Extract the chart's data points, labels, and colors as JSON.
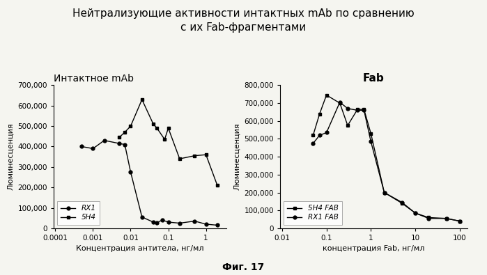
{
  "title_line1": "Нейтрализующие активности интактных mAb по сравнению",
  "title_line2": "с их Fab-фрагментами",
  "fig_label": "Фиг. 17",
  "left_subplot_title": "Интактное mAb",
  "right_subplot_title": "Fab",
  "left_xlabel": "Концентрация антитела, нг/мл",
  "right_xlabel": "концентрация Fab, нг/мл",
  "ylabel": "Люминесценция",
  "rx1_x": [
    0.0005,
    0.001,
    0.002,
    0.005,
    0.007,
    0.01,
    0.02,
    0.04,
    0.05,
    0.07,
    0.1,
    0.2,
    0.5,
    1.0,
    2.0
  ],
  "rx1_y": [
    400000,
    390000,
    430000,
    415000,
    410000,
    275000,
    55000,
    30000,
    28000,
    40000,
    30000,
    25000,
    35000,
    20000,
    15000
  ],
  "5h4_x": [
    0.005,
    0.007,
    0.01,
    0.02,
    0.04,
    0.05,
    0.08,
    0.1,
    0.2,
    0.5,
    1.0,
    2.0
  ],
  "5h4_y": [
    445000,
    470000,
    500000,
    630000,
    510000,
    490000,
    435000,
    490000,
    340000,
    355000,
    360000,
    210000
  ],
  "5h4fab_x": [
    0.05,
    0.07,
    0.1,
    0.2,
    0.3,
    0.5,
    0.7,
    1.0,
    2.0,
    5.0,
    10.0,
    20.0,
    50.0,
    100.0
  ],
  "5h4fab_y": [
    520000,
    640000,
    745000,
    700000,
    575000,
    665000,
    665000,
    530000,
    200000,
    140000,
    85000,
    60000,
    55000,
    40000
  ],
  "rx1fab_x": [
    0.05,
    0.07,
    0.1,
    0.2,
    0.3,
    0.5,
    0.7,
    1.0,
    2.0,
    5.0,
    10.0,
    20.0,
    50.0,
    100.0
  ],
  "rx1fab_y": [
    475000,
    520000,
    535000,
    705000,
    670000,
    660000,
    660000,
    485000,
    200000,
    145000,
    85000,
    55000,
    55000,
    40000
  ],
  "line_color": "#000000",
  "background_color": "#f5f5f0",
  "title_fontsize": 11,
  "subtitle_fontsize": 10,
  "label_fontsize": 8,
  "tick_fontsize": 7.5,
  "legend_fontsize": 7.5,
  "left_yticks": [
    0,
    100000,
    200000,
    300000,
    400000,
    500000,
    600000,
    700000
  ],
  "right_yticks": [
    0,
    100000,
    200000,
    300000,
    400000,
    500000,
    600000,
    700000,
    800000
  ],
  "left_xticks": [
    0.0001,
    0.001,
    0.01,
    0.1,
    1
  ],
  "left_xticklabels": [
    "0.0001",
    "0.001",
    "0.01",
    "0.1",
    "1"
  ],
  "right_xticks": [
    0.01,
    0.1,
    1,
    10,
    100
  ],
  "right_xticklabels": [
    "0.01",
    "0.1",
    "1",
    "10",
    "100"
  ]
}
